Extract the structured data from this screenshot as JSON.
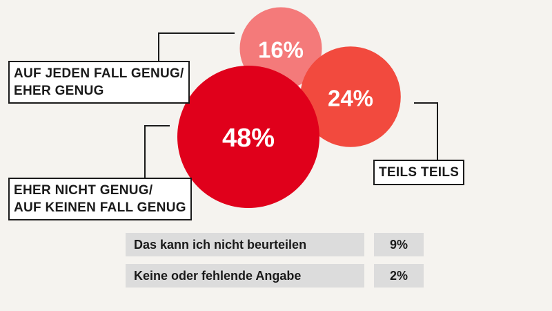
{
  "chart_data": {
    "type": "bubble",
    "series": [
      {
        "category": "AUF JEDEN FALL GENUG/ EHER GENUG",
        "label_lines": [
          "AUF JEDEN FALL GENUG/",
          "EHER GENUG"
        ],
        "value": 16,
        "display": "16%",
        "color": "#f47a7a"
      },
      {
        "category": "TEILS TEILS",
        "label_lines": [
          "TEILS TEILS"
        ],
        "value": 24,
        "display": "24%",
        "color": "#f24a3e"
      },
      {
        "category": "EHER NICHT GENUG/ AUF KEINEN FALL GENUG",
        "label_lines": [
          "EHER NICHT GENUG/",
          "AUF KEINEN FALL GENUG"
        ],
        "value": 48,
        "display": "48%",
        "color": "#e0001b"
      }
    ],
    "extra": [
      {
        "label": "Das kann ich nicht beurteilen",
        "value": 9,
        "display": "9%"
      },
      {
        "label": "Keine oder fehlende Angabe",
        "value": 2,
        "display": "2%"
      }
    ]
  }
}
